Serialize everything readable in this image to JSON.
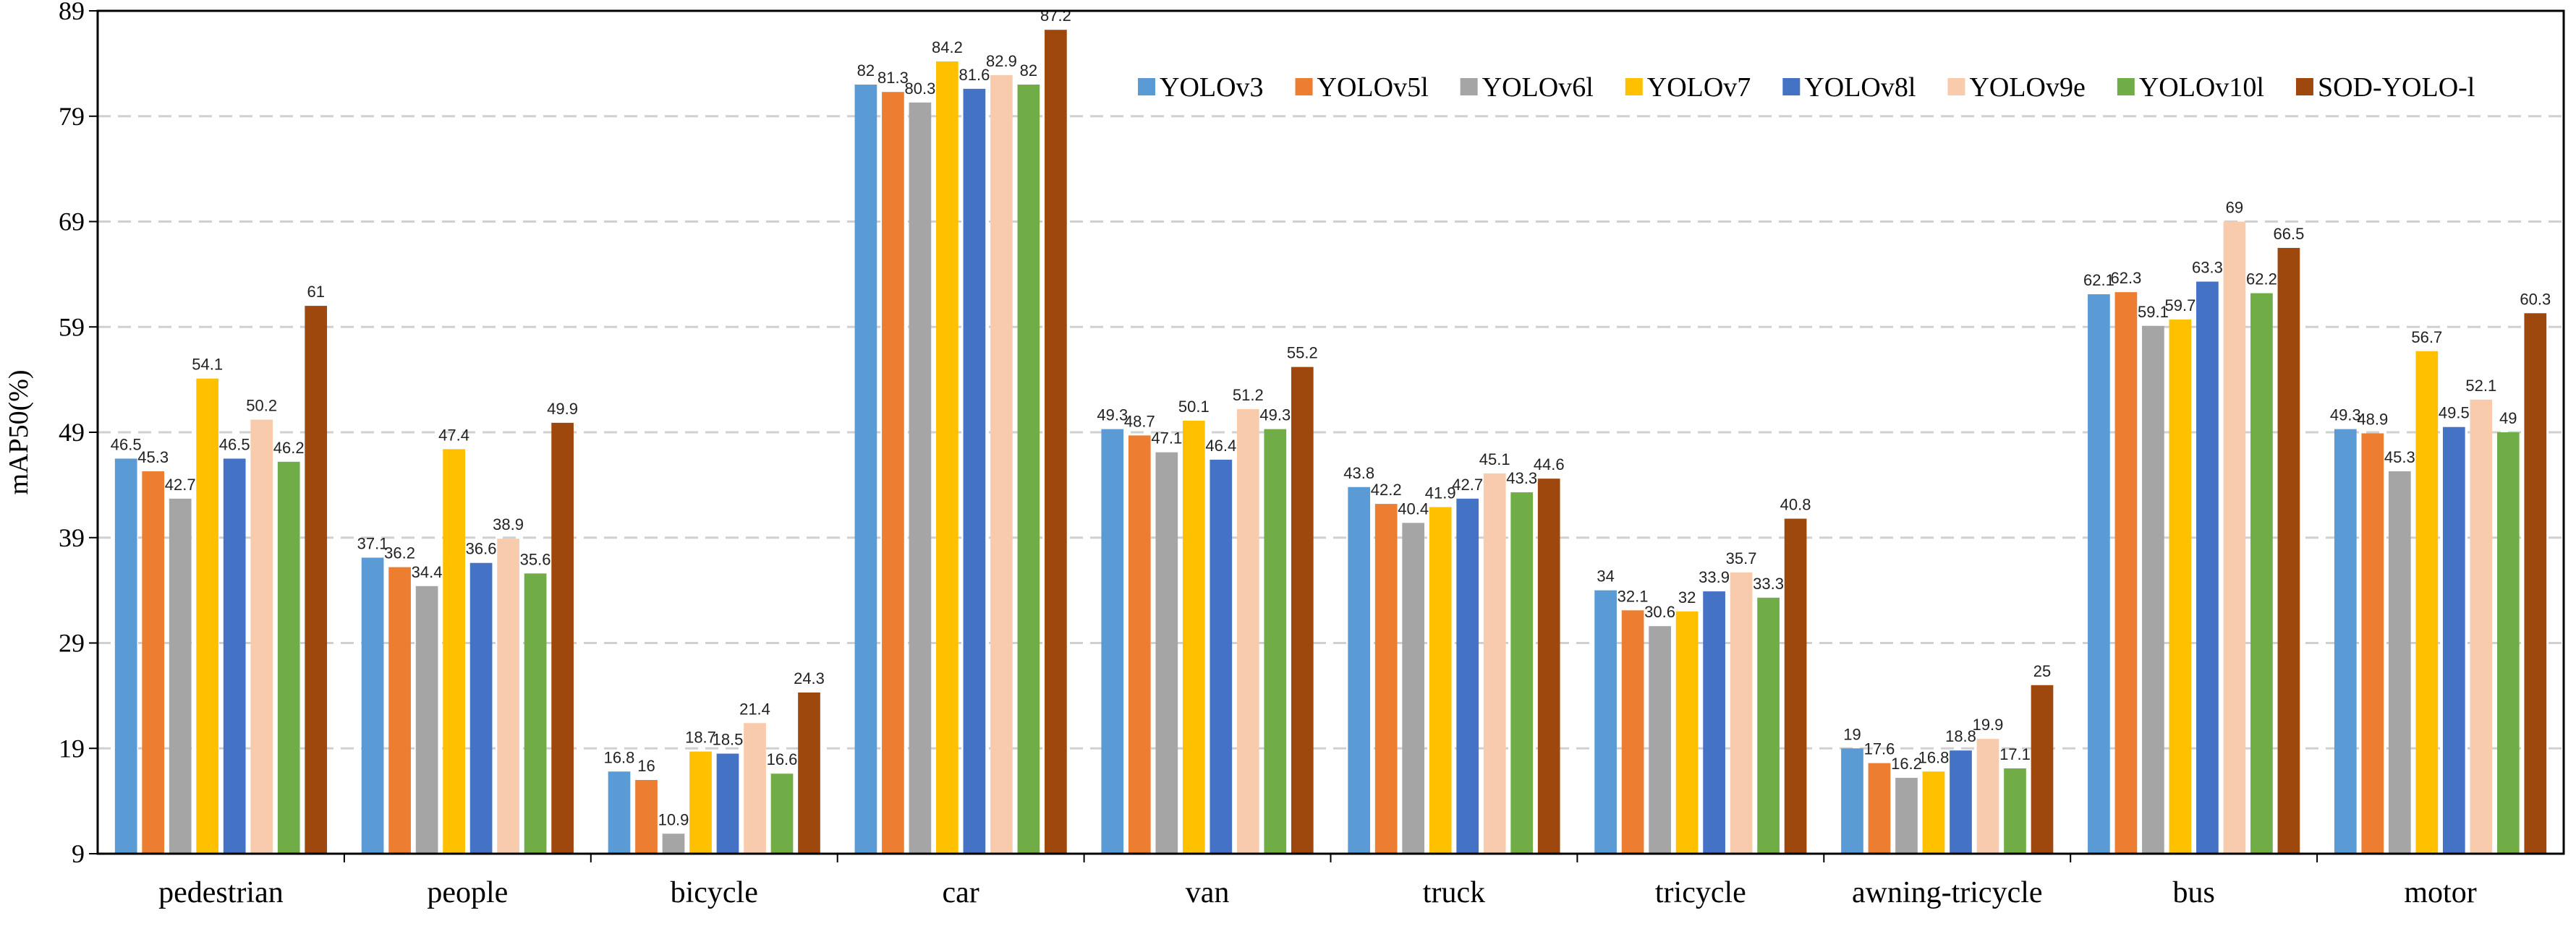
{
  "chart_data": {
    "type": "bar",
    "title": "",
    "xlabel": "",
    "ylabel": "mAP50(%)",
    "ylim": [
      9,
      89
    ],
    "yticks": [
      9,
      19,
      29,
      39,
      49,
      59,
      69,
      79,
      89
    ],
    "grid": true,
    "legend_position": "top-right",
    "categories": [
      "pedestrian",
      "people",
      "bicycle",
      "car",
      "van",
      "truck",
      "tricycle",
      "awning-tricycle",
      "bus",
      "motor"
    ],
    "series": [
      {
        "name": "YOLOv3",
        "color": "#5B9BD5",
        "values": [
          46.5,
          37.1,
          16.8,
          82,
          49.3,
          43.8,
          34,
          19,
          62.1,
          49.3
        ]
      },
      {
        "name": "YOLOv5l",
        "color": "#ED7D31",
        "values": [
          45.3,
          36.2,
          16,
          81.3,
          48.7,
          42.2,
          32.1,
          17.6,
          62.3,
          48.9
        ]
      },
      {
        "name": "YOLOv6l",
        "color": "#A5A5A5",
        "values": [
          42.7,
          34.4,
          10.9,
          80.3,
          47.1,
          40.4,
          30.6,
          16.2,
          59.1,
          45.3
        ]
      },
      {
        "name": "YOLOv7",
        "color": "#FFC000",
        "values": [
          54.1,
          47.4,
          18.7,
          84.2,
          50.1,
          41.9,
          32,
          16.8,
          59.7,
          56.7
        ]
      },
      {
        "name": "YOLOv8l",
        "color": "#4472C4",
        "values": [
          46.5,
          36.6,
          18.5,
          81.6,
          46.4,
          42.7,
          33.9,
          18.8,
          63.3,
          49.5
        ]
      },
      {
        "name": "YOLOv9e",
        "color": "#F8CBAD",
        "values": [
          50.2,
          38.9,
          21.4,
          82.9,
          51.2,
          45.1,
          35.7,
          19.9,
          69,
          52.1
        ]
      },
      {
        "name": "YOLOv10l",
        "color": "#70AD47",
        "values": [
          46.2,
          35.6,
          16.6,
          82,
          49.3,
          43.3,
          33.3,
          17.1,
          62.2,
          49
        ]
      },
      {
        "name": "SOD-YOLO-l",
        "color": "#9E480E",
        "values": [
          61,
          49.9,
          24.3,
          87.2,
          55.2,
          44.6,
          40.8,
          25,
          66.5,
          60.3
        ]
      }
    ]
  }
}
